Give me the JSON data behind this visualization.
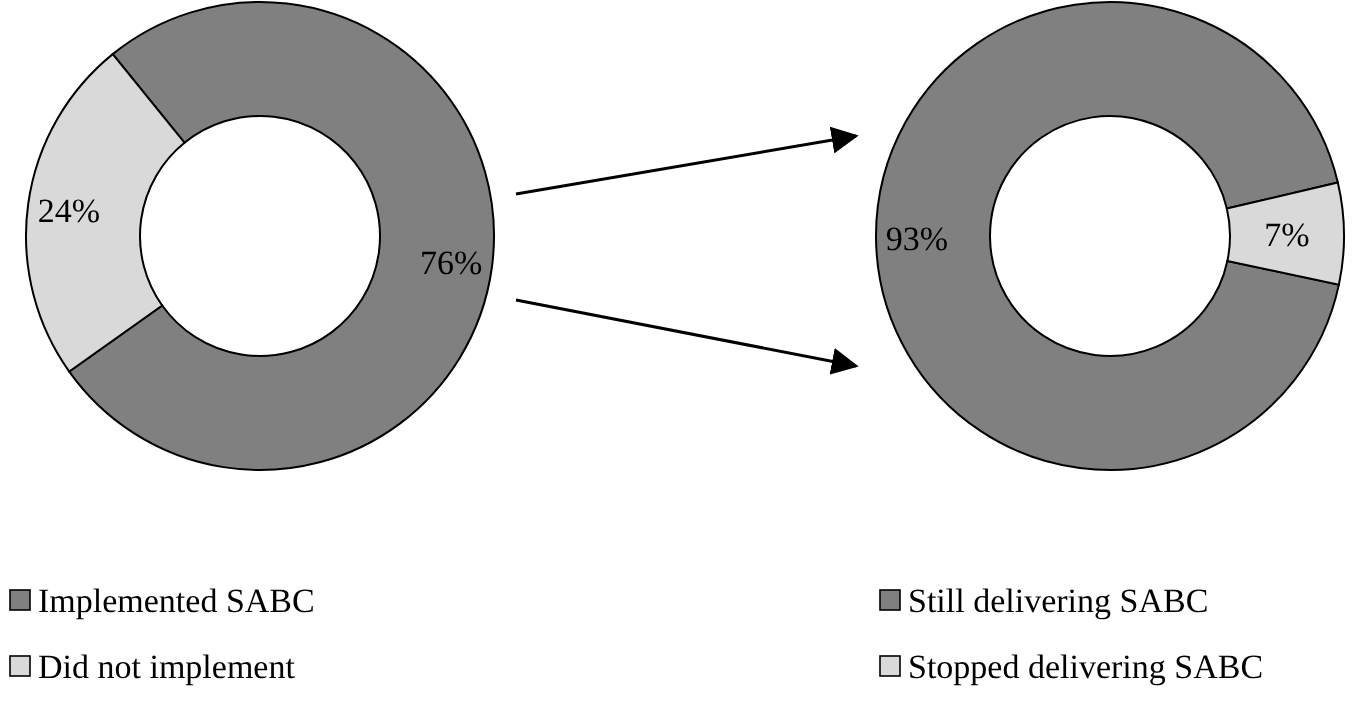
{
  "chart_data": [
    {
      "type": "donut",
      "categories": [
        "Implemented SABC",
        "Did not implement"
      ],
      "values": [
        76,
        24
      ],
      "colors": [
        "#808080",
        "#d9d9d9"
      ],
      "value_labels": [
        "76%",
        "24%"
      ],
      "legend": "bottom"
    },
    {
      "type": "donut",
      "categories": [
        "Still delivering SABC",
        "Stopped delivering SABC"
      ],
      "values": [
        93,
        7
      ],
      "colors": [
        "#808080",
        "#d9d9d9"
      ],
      "value_labels": [
        "93%",
        "7%"
      ],
      "legend": "bottom"
    }
  ]
}
